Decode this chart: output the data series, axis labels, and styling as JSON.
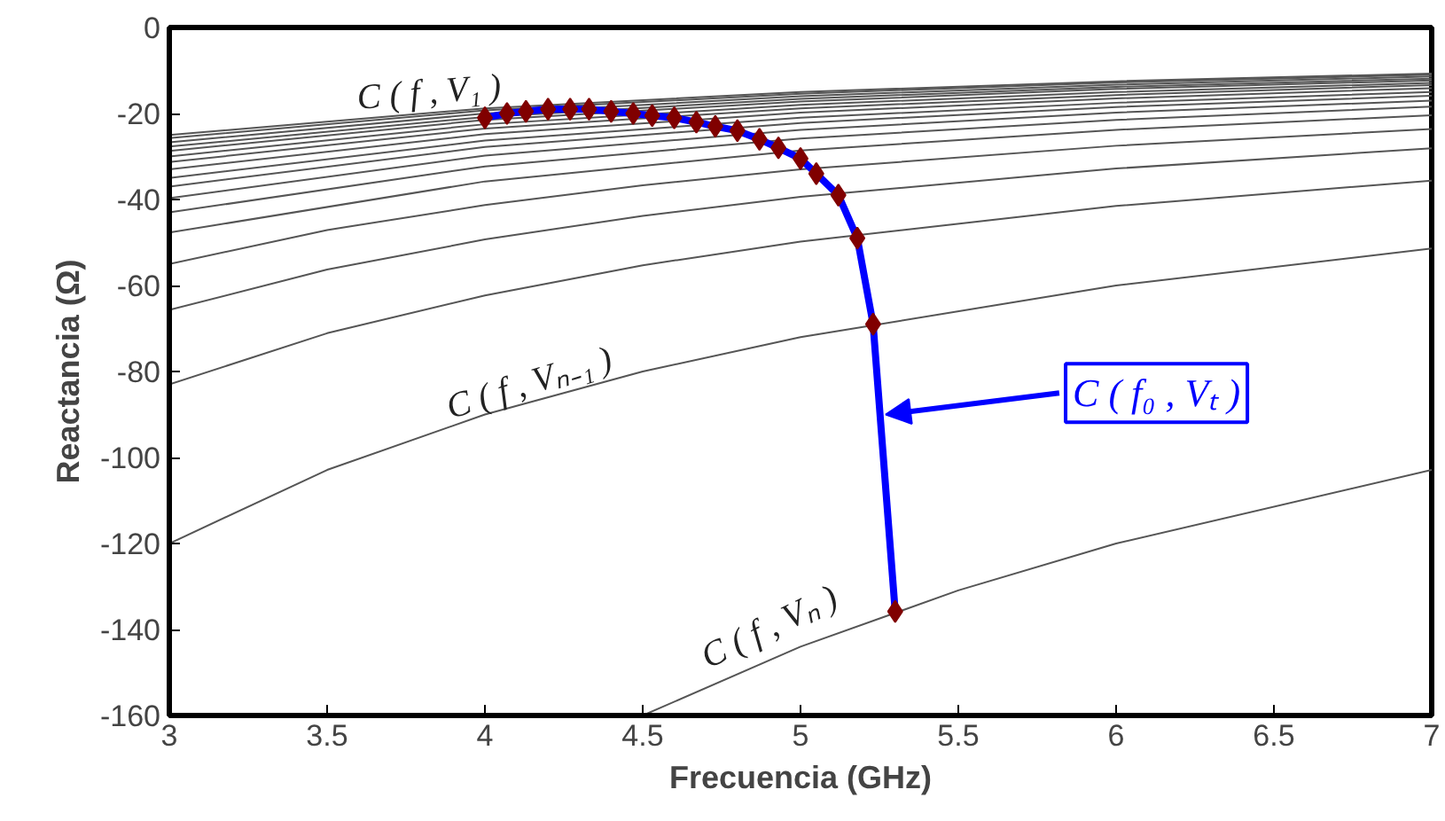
{
  "chart_data": {
    "type": "line",
    "xlabel": "Frecuencia (GHz)",
    "ylabel": "Reactancia (Ω)",
    "xlim": [
      3,
      7
    ],
    "ylim": [
      -160,
      0
    ],
    "xticks": [
      3,
      3.5,
      4,
      4.5,
      5,
      5.5,
      6,
      6.5,
      7
    ],
    "yticks": [
      -160,
      -140,
      -120,
      -100,
      -80,
      -60,
      -40,
      -20,
      0
    ],
    "grid": false,
    "annotations": [
      "C ( f , V₁ )",
      "C ( f , Vₙ₋₁ )",
      "C ( f , Vₙ )",
      {
        "text": "C ( f₀ , Vₜ )",
        "x": 5.27,
        "y": -90
      }
    ],
    "series": [
      {
        "color": "#555555",
        "x": [
          4.5,
          5,
          5.5,
          6,
          7
        ],
        "values": [
          -160,
          -144,
          -130.9,
          -120,
          -102.9
        ]
      },
      {
        "color": "#555555",
        "x": [
          3,
          3.5,
          4,
          4.5,
          5,
          6,
          7
        ],
        "values": [
          -120,
          -102.9,
          -90,
          -80,
          -72,
          -60,
          -51.4
        ]
      },
      {
        "color": "#555555",
        "x": [
          3,
          3.5,
          4,
          4.5,
          5,
          6,
          7
        ],
        "values": [
          -83,
          -71.1,
          -62.3,
          -55.3,
          -49.8,
          -41.5,
          -35.6
        ]
      },
      {
        "color": "#555555",
        "x": [
          3,
          3.5,
          4,
          4.5,
          5,
          6,
          7
        ],
        "values": [
          -65.7,
          -56.3,
          -49.3,
          -43.8,
          -39.4,
          -32.8,
          -28.1
        ]
      },
      {
        "color": "#555555",
        "x": [
          3,
          3.5,
          4,
          4.5,
          5,
          6,
          7
        ],
        "values": [
          -55,
          -47.1,
          -41.3,
          -36.7,
          -33,
          -27.5,
          -23.6
        ]
      },
      {
        "color": "#555555",
        "x": [
          3,
          4,
          5,
          6,
          7
        ],
        "values": [
          -47.7,
          -35.8,
          -28.6,
          -23.8,
          -20.4
        ]
      },
      {
        "color": "#555555",
        "x": [
          3,
          4,
          5,
          6,
          7
        ],
        "values": [
          -43,
          -32.3,
          -25.8,
          -21.5,
          -18.4
        ]
      },
      {
        "color": "#555555",
        "x": [
          3,
          4,
          5,
          6,
          7
        ],
        "values": [
          -39.7,
          -29.8,
          -23.8,
          -19.8,
          -17
        ]
      },
      {
        "color": "#555555",
        "x": [
          3,
          4,
          5,
          6,
          7
        ],
        "values": [
          -37,
          -27.8,
          -22.2,
          -18.5,
          -15.9
        ]
      },
      {
        "color": "#555555",
        "x": [
          3,
          4,
          5,
          6,
          7
        ],
        "values": [
          -35,
          -26.3,
          -21,
          -17.5,
          -15
        ]
      },
      {
        "color": "#555555",
        "x": [
          3,
          4,
          5,
          6,
          7
        ],
        "values": [
          -33,
          -24.8,
          -19.8,
          -16.5,
          -14.1
        ]
      },
      {
        "color": "#555555",
        "x": [
          3,
          4,
          5,
          6,
          7
        ],
        "values": [
          -31.3,
          -23.5,
          -18.8,
          -15.7,
          -13.4
        ]
      },
      {
        "color": "#555555",
        "x": [
          3,
          4,
          5,
          6,
          7
        ],
        "values": [
          -30,
          -22.5,
          -18,
          -15,
          -12.9
        ]
      },
      {
        "color": "#555555",
        "x": [
          3,
          4,
          5,
          6,
          7
        ],
        "values": [
          -28.7,
          -21.5,
          -17.2,
          -14.3,
          -12.3
        ]
      },
      {
        "color": "#555555",
        "x": [
          3,
          4,
          5,
          6,
          7
        ],
        "values": [
          -27.7,
          -20.8,
          -16.6,
          -13.8,
          -11.9
        ]
      },
      {
        "color": "#555555",
        "x": [
          3,
          4,
          5,
          6,
          7
        ],
        "values": [
          -26.7,
          -20,
          -16,
          -13.3,
          -11.4
        ]
      },
      {
        "color": "#555555",
        "x": [
          3,
          4,
          5,
          6,
          7
        ],
        "values": [
          -25.7,
          -19.3,
          -15.4,
          -12.8,
          -11
        ]
      },
      {
        "color": "#555555",
        "x": [
          3,
          4,
          5,
          6,
          7
        ],
        "values": [
          -25,
          -18.8,
          -15,
          -12.5,
          -10.7
        ]
      },
      {
        "color": "#0000ff",
        "x": [
          4.0,
          4.07,
          4.13,
          4.2,
          4.27,
          4.33,
          4.4,
          4.47,
          4.53,
          4.6,
          4.67,
          4.73,
          4.8,
          4.87,
          4.93,
          5.0,
          5.05,
          5.12,
          5.18,
          5.23,
          5.3
        ],
        "values": [
          -21,
          -20,
          -19.5,
          -19,
          -19,
          -19,
          -19.5,
          -20,
          -20.5,
          -21,
          -22,
          -23,
          -24,
          -26,
          -28,
          -30.5,
          -34,
          -39,
          -49,
          -69,
          -135.8
        ]
      },
      {
        "type": "scatter",
        "marker": "diamond",
        "color": "#800000",
        "x": [
          4.0,
          4.07,
          4.13,
          4.2,
          4.27,
          4.33,
          4.4,
          4.47,
          4.53,
          4.6,
          4.67,
          4.73,
          4.8,
          4.87,
          4.93,
          5.0,
          5.05,
          5.12,
          5.18,
          5.23,
          5.3
        ],
        "values": [
          -21,
          -20,
          -19.5,
          -19,
          -19,
          -19,
          -19.5,
          -20,
          -20.5,
          -21,
          -22,
          -23,
          -24,
          -26,
          -28,
          -30.5,
          -34,
          -39,
          -49,
          -69,
          -135.8
        ]
      }
    ]
  }
}
